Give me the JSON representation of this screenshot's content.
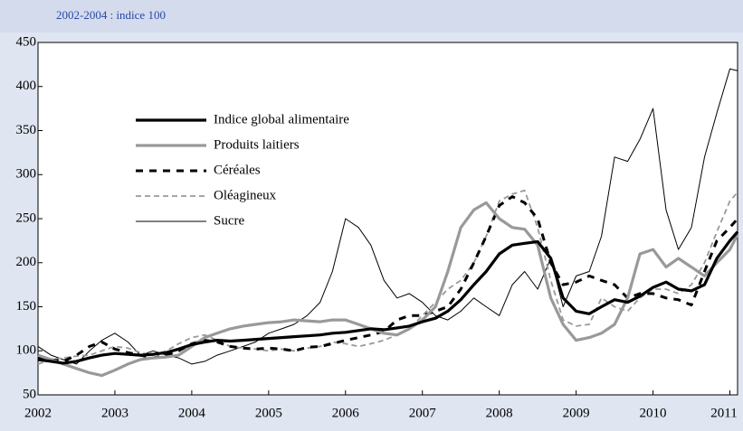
{
  "chart_data": {
    "type": "line",
    "subtitle": "2002-2004 : indice 100",
    "x": [
      2002,
      2002.17,
      2002.33,
      2002.5,
      2002.67,
      2002.83,
      2003,
      2003.17,
      2003.33,
      2003.5,
      2003.67,
      2003.83,
      2004,
      2004.17,
      2004.33,
      2004.5,
      2004.67,
      2004.83,
      2005,
      2005.17,
      2005.33,
      2005.5,
      2005.67,
      2005.83,
      2006,
      2006.17,
      2006.33,
      2006.5,
      2006.67,
      2006.83,
      2007,
      2007.17,
      2007.33,
      2007.5,
      2007.67,
      2007.83,
      2008,
      2008.17,
      2008.33,
      2008.5,
      2008.67,
      2008.83,
      2009,
      2009.17,
      2009.33,
      2009.5,
      2009.67,
      2009.83,
      2010,
      2010.17,
      2010.33,
      2010.5,
      2010.67,
      2010.83,
      2011,
      2011.1
    ],
    "series": [
      {
        "name": "Indice global alimentaire",
        "color": "#000000",
        "line_width": 3.2,
        "line_style": "solid",
        "values": [
          90,
          88,
          86,
          88,
          92,
          95,
          97,
          96,
          95,
          96,
          98,
          102,
          107,
          110,
          112,
          111,
          112,
          113,
          114,
          115,
          116,
          117,
          118,
          120,
          121,
          123,
          125,
          124,
          126,
          128,
          133,
          137,
          145,
          158,
          175,
          190,
          210,
          220,
          222,
          224,
          205,
          160,
          145,
          142,
          150,
          158,
          155,
          162,
          172,
          178,
          170,
          168,
          175,
          205,
          225,
          235
        ]
      },
      {
        "name": "Produits laitiers",
        "color": "#999999",
        "line_width": 3.2,
        "line_style": "solid",
        "values": [
          95,
          90,
          85,
          80,
          75,
          72,
          78,
          85,
          90,
          92,
          93,
          95,
          105,
          115,
          120,
          125,
          128,
          130,
          132,
          133,
          135,
          134,
          133,
          135,
          135,
          130,
          125,
          120,
          118,
          125,
          135,
          150,
          190,
          240,
          260,
          268,
          250,
          240,
          238,
          220,
          160,
          130,
          112,
          115,
          120,
          130,
          160,
          210,
          215,
          195,
          205,
          195,
          185,
          200,
          215,
          232
        ]
      },
      {
        "name": "Céréales",
        "color": "#000000",
        "line_width": 3,
        "line_style": "dashed",
        "values": [
          92,
          90,
          88,
          95,
          105,
          110,
          102,
          98,
          95,
          92,
          95,
          100,
          108,
          112,
          110,
          105,
          103,
          102,
          103,
          102,
          100,
          104,
          105,
          108,
          112,
          115,
          118,
          122,
          135,
          140,
          140,
          145,
          150,
          170,
          200,
          230,
          265,
          275,
          268,
          250,
          200,
          175,
          178,
          185,
          180,
          175,
          160,
          165,
          165,
          160,
          158,
          152,
          190,
          225,
          240,
          250
        ]
      },
      {
        "name": "Oléagineux",
        "color": "#999999",
        "line_width": 1.8,
        "line_style": "dashed",
        "values": [
          85,
          90,
          92,
          94,
          95,
          100,
          105,
          103,
          98,
          95,
          100,
          108,
          115,
          118,
          112,
          105,
          103,
          102,
          100,
          102,
          100,
          103,
          105,
          110,
          108,
          105,
          108,
          112,
          118,
          125,
          140,
          155,
          170,
          180,
          200,
          230,
          270,
          278,
          282,
          240,
          180,
          135,
          128,
          130,
          160,
          150,
          145,
          160,
          170,
          170,
          165,
          175,
          200,
          235,
          270,
          280
        ]
      },
      {
        "name": "Sucre",
        "color": "#000000",
        "line_width": 1,
        "line_style": "solid",
        "values": [
          105,
          95,
          90,
          85,
          100,
          112,
          120,
          110,
          95,
          100,
          95,
          92,
          85,
          88,
          95,
          100,
          105,
          110,
          120,
          125,
          130,
          140,
          155,
          190,
          250,
          240,
          220,
          180,
          160,
          165,
          155,
          140,
          135,
          145,
          160,
          150,
          140,
          175,
          190,
          170,
          205,
          150,
          185,
          190,
          230,
          320,
          315,
          340,
          375,
          260,
          215,
          240,
          320,
          370,
          420,
          418
        ]
      }
    ],
    "xlim": [
      2002,
      2011.1
    ],
    "xticks": [
      2002,
      2003,
      2004,
      2005,
      2006,
      2007,
      2008,
      2009,
      2010,
      2011
    ],
    "ylim": [
      50,
      450
    ],
    "yticks": [
      50,
      100,
      150,
      200,
      250,
      300,
      350,
      400,
      450
    ],
    "grid": false,
    "legend": "upper left"
  }
}
